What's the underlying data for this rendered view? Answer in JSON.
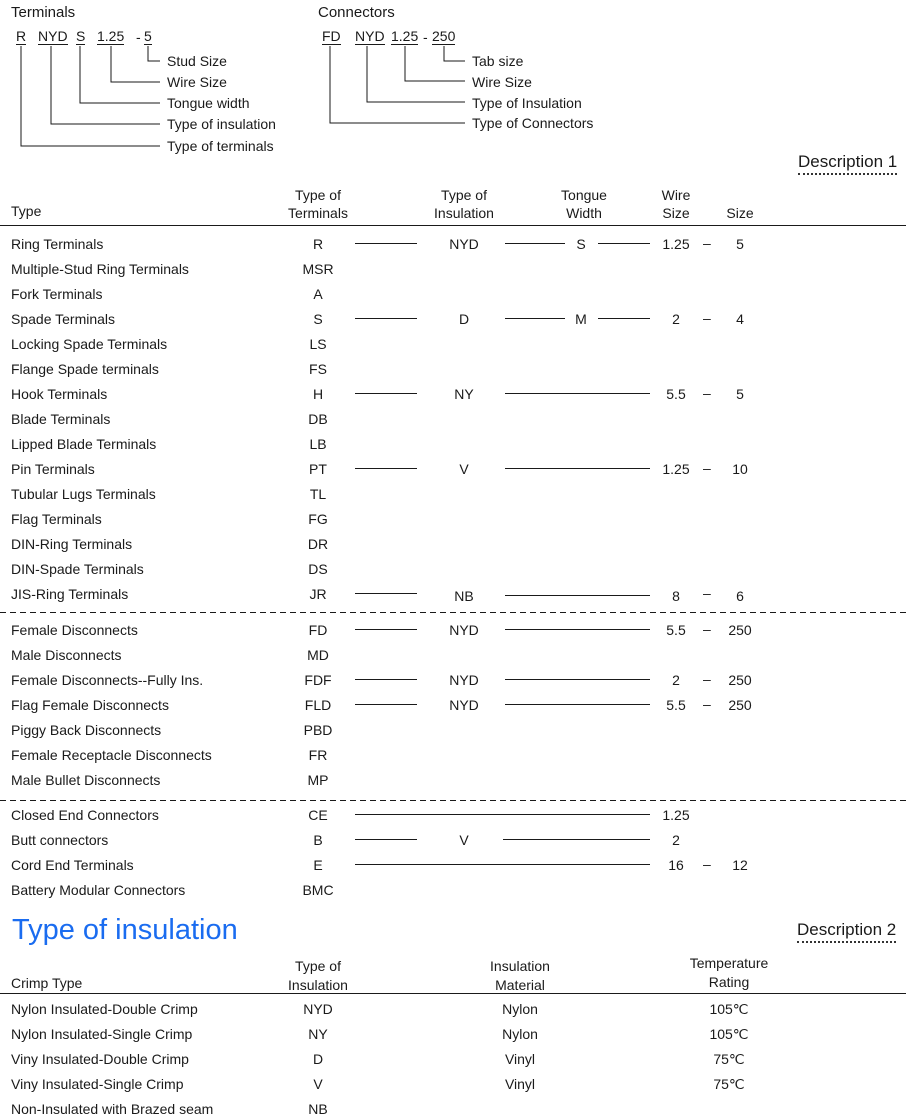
{
  "terminals_diagram": {
    "title": "Terminals",
    "codes": [
      "R",
      "NYD",
      "S",
      "1.25",
      "-",
      "5"
    ],
    "labels": [
      "Stud Size",
      "Wire Size",
      "Tongue width",
      "Type of insulation",
      "Type of terminals"
    ]
  },
  "connectors_diagram": {
    "title": "Connectors",
    "codes": [
      "FD",
      "NYD",
      "1.25",
      "-",
      "250"
    ],
    "labels": [
      "Tab size",
      "Wire Size",
      "Type of Insulation",
      "Type of Connectors"
    ]
  },
  "description1": {
    "label": "Description 1",
    "headers": {
      "type": "Type",
      "terminals": [
        "Type of",
        "Terminals"
      ],
      "insulation": [
        "Type of",
        "Insulation"
      ],
      "tongue": [
        "Tongue",
        "Width"
      ],
      "wire": [
        "Wire",
        "Size"
      ],
      "size": "Size"
    },
    "groups": [
      [
        {
          "name": "Ring Terminals",
          "code": "R",
          "ins": "NYD",
          "tongue": "S",
          "wire": "1.25",
          "size": "5"
        },
        {
          "name": "Multiple-Stud Ring Terminals",
          "code": "MSR"
        },
        {
          "name": "Fork Terminals",
          "code": "A"
        },
        {
          "name": "Spade Terminals",
          "code": "S",
          "ins": "D",
          "tongue": "M",
          "wire": "2",
          "size": "4"
        },
        {
          "name": "Locking Spade Terminals",
          "code": "LS"
        },
        {
          "name": "Flange Spade terminals",
          "code": "FS"
        },
        {
          "name": "Hook Terminals",
          "code": "H",
          "ins": "NY",
          "wire": "5.5",
          "size": "5"
        },
        {
          "name": "Blade Terminals",
          "code": "DB"
        },
        {
          "name": "Lipped Blade Terminals",
          "code": "LB"
        },
        {
          "name": "Pin Terminals",
          "code": "PT",
          "ins": "V",
          "wire": "1.25",
          "size": "10"
        },
        {
          "name": "Tubular Lugs Terminals",
          "code": "TL"
        },
        {
          "name": "Flag Terminals",
          "code": "FG"
        },
        {
          "name": "DIN-Ring Terminals",
          "code": "DR"
        },
        {
          "name": "DIN-Spade Terminals",
          "code": "DS"
        },
        {
          "name": "JIS-Ring Terminals",
          "code": "JR",
          "ins": "NB",
          "wire": "8",
          "size": "6"
        }
      ],
      [
        {
          "name": "Female Disconnects",
          "code": "FD",
          "ins": "NYD",
          "wire": "5.5",
          "size": "250"
        },
        {
          "name": "Male Disconnects",
          "code": "MD"
        },
        {
          "name": "Female Disconnects--Fully Ins.",
          "code": "FDF",
          "ins": "NYD",
          "wire": "2",
          "size": "250"
        },
        {
          "name": "Flag Female Disconnects",
          "code": "FLD",
          "ins": "NYD",
          "wire": "5.5",
          "size": "250"
        },
        {
          "name": "Piggy Back Disconnects",
          "code": "PBD"
        },
        {
          "name": "Female Receptacle Disconnects",
          "code": "FR"
        },
        {
          "name": "Male Bullet Disconnects",
          "code": "MP"
        }
      ],
      [
        {
          "name": "Closed End Connectors",
          "code": "CE",
          "wire": "1.25"
        },
        {
          "name": "Butt connectors",
          "code": "B",
          "ins": "V",
          "wire": "2"
        },
        {
          "name": "Cord End Terminals",
          "code": "E",
          "wire": "16",
          "size": "12"
        },
        {
          "name": "Battery Modular Connectors",
          "code": "BMC"
        }
      ]
    ]
  },
  "insulation_section": {
    "title": "Type of insulation",
    "title_color": "#1a6cf0",
    "description_label": "Description 2",
    "headers": {
      "crimp": "Crimp Type",
      "type": [
        "Type of",
        "Insulation"
      ],
      "material": [
        "Insulation",
        "Material"
      ],
      "temp": [
        "Temperature",
        "Rating"
      ]
    },
    "rows": [
      {
        "crimp": "Nylon Insulated-Double Crimp",
        "type": "NYD",
        "material": "Nylon",
        "temp": "105℃"
      },
      {
        "crimp": "Nylon Insulated-Single Crimp",
        "type": "NY",
        "material": "Nylon",
        "temp": "105℃"
      },
      {
        "crimp": "Viny Insulated-Double Crimp",
        "type": "D",
        "material": "Vinyl",
        "temp": "75℃"
      },
      {
        "crimp": "Viny Insulated-Single Crimp",
        "type": "V",
        "material": "Vinyl",
        "temp": "75℃"
      },
      {
        "crimp": "Non-Insulated with Brazed seam",
        "type": "NB"
      }
    ]
  }
}
